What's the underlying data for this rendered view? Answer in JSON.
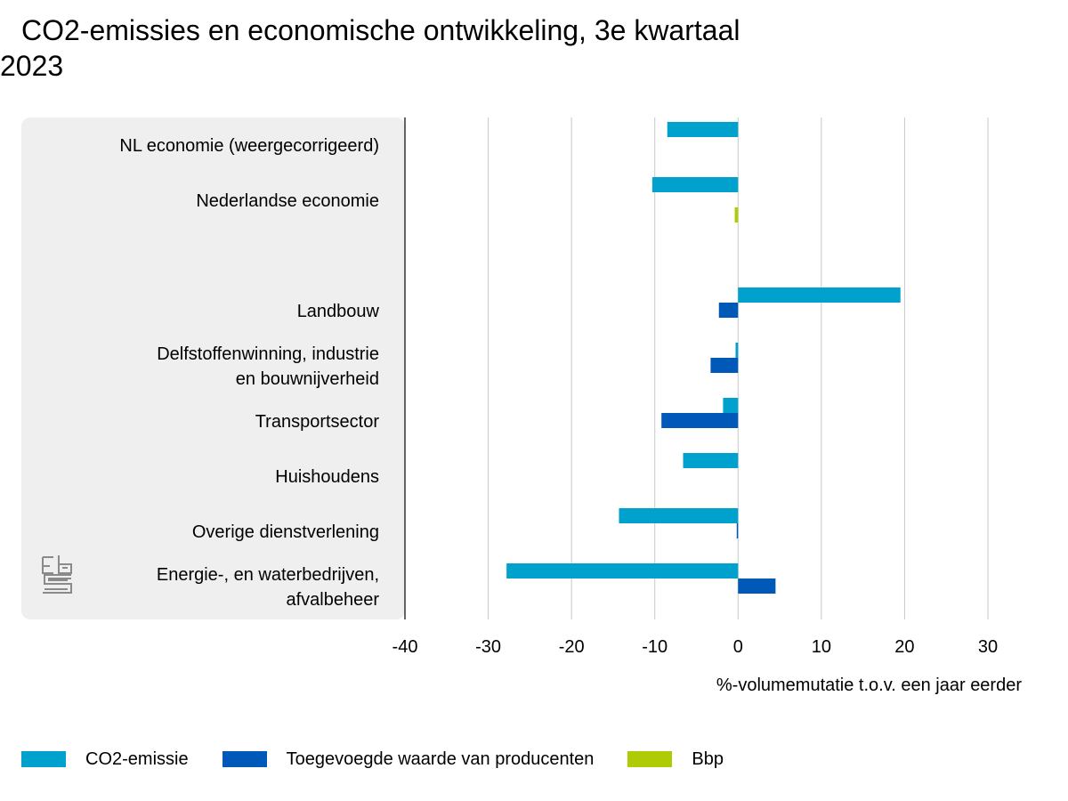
{
  "title_line1": "CO2-emissies en economische ontwikkeling, 3e kwartaal",
  "title_line2": "2023",
  "chart_data": {
    "type": "bar",
    "orientation": "horizontal",
    "categories": [
      {
        "lines": [
          "NL economie (weergecorrigeerd)"
        ]
      },
      {
        "lines": [
          "Nederlandse economie"
        ]
      },
      {
        "lines": [
          "Landbouw"
        ]
      },
      {
        "lines": [
          "Delfstoffenwinning, industrie",
          "en bouwnijverheid"
        ]
      },
      {
        "lines": [
          "Transportsector"
        ]
      },
      {
        "lines": [
          "Huishoudens"
        ]
      },
      {
        "lines": [
          "Overige dienstverlening"
        ]
      },
      {
        "lines": [
          "Energie-, en waterbedrijven,",
          "afvalbeheer"
        ]
      }
    ],
    "series": [
      {
        "name": "CO2-emissie",
        "color": "#00a1cd",
        "values": [
          -8.5,
          -10.3,
          19.5,
          -0.3,
          -1.8,
          -6.6,
          -14.3,
          -27.8
        ]
      },
      {
        "name": "Toegevoegde waarde van producenten",
        "color": "#0058b8",
        "values": [
          null,
          null,
          -2.3,
          -3.3,
          -9.2,
          null,
          -0.1,
          4.5
        ]
      },
      {
        "name": "Bbp",
        "color": "#afcb05",
        "values": [
          null,
          -0.4,
          null,
          null,
          null,
          null,
          null,
          null
        ]
      }
    ],
    "xlim": [
      -40,
      30
    ],
    "xticks": [
      -40,
      -30,
      -20,
      -10,
      0,
      10,
      20,
      30
    ],
    "xlabel": "%-volumemutatie t.o.v. een jaar eerder",
    "legend_position": "bottom",
    "grid": true
  }
}
